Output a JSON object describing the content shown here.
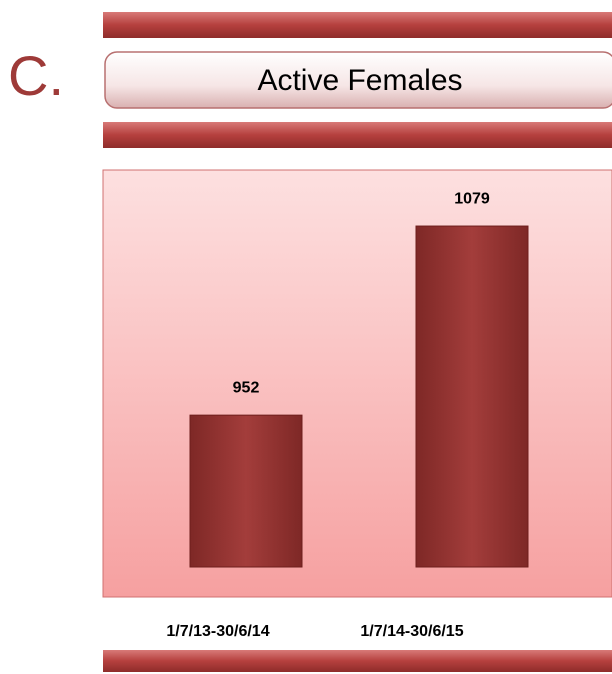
{
  "chart_data": {
    "type": "bar",
    "label": "C.",
    "title": "Active Females",
    "categories": [
      "1/7/13-30/6/14",
      "1/7/14-30/6/15"
    ],
    "values": [
      952,
      1079
    ],
    "color": "#9e3a38",
    "ylim": [
      850,
      1120
    ],
    "grid": false
  }
}
